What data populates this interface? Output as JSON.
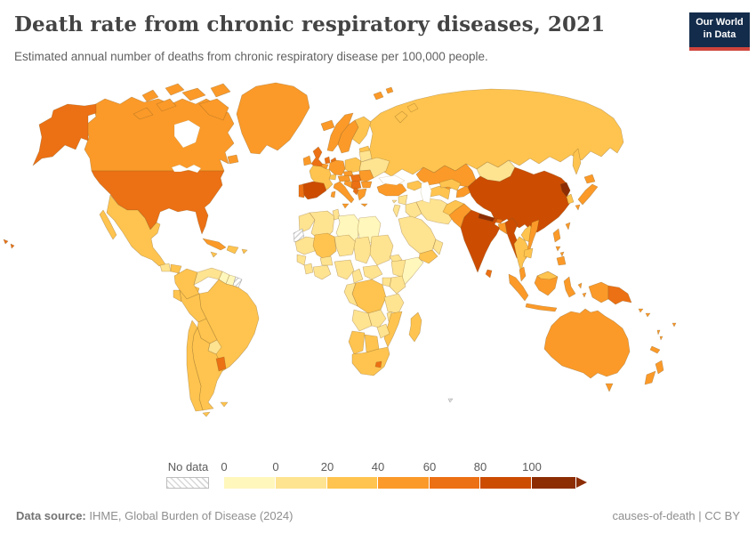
{
  "header": {
    "title": "Death rate from chronic respiratory diseases, 2021",
    "subtitle": "Estimated annual number of deaths from chronic respiratory disease per 100,000 people.",
    "logo": {
      "line1": "Our World",
      "line2": "in Data",
      "bg_color": "#132c4b",
      "accent_color": "#d0453c"
    }
  },
  "legend": {
    "no_data_label": "No data",
    "ticks": [
      "0",
      "0",
      "20",
      "40",
      "60",
      "80",
      "100"
    ],
    "bin_colors": [
      "#fff7bc",
      "#fee391",
      "#fec44f",
      "#fb9a29",
      "#ec7014",
      "#cc4c02",
      "#8c2d04"
    ]
  },
  "footer": {
    "source_label": "Data source:",
    "source_text": " IHME, Global Burden of Disease (2024)",
    "license_text": "causes-of-death | CC BY"
  },
  "chart_data": {
    "type": "choropleth",
    "title": "Death rate from chronic respiratory diseases, 2021",
    "unit": "deaths per 100,000 people",
    "year": "2021",
    "legend_title": "Deaths per 100,000 people",
    "bin_ranges": [
      "0",
      "0–20",
      "20–40",
      "40–60",
      "60–80",
      "80–100",
      ">100"
    ],
    "no_data_style": "hatched",
    "regions": [
      {
        "id": "russia",
        "name": "Russia",
        "bin": 2
      },
      {
        "id": "novaya",
        "name": "Novaya Zemlya (Russia)",
        "bin": 2
      },
      {
        "id": "svalbard",
        "name": "Svalbard",
        "bin": 3
      },
      {
        "id": "canada",
        "name": "Canada",
        "bin": 3
      },
      {
        "id": "nfld",
        "name": "Newfoundland (Canada)",
        "bin": 3
      },
      {
        "id": "arctic1",
        "name": "Arctic islands",
        "bin": 3
      },
      {
        "id": "arctic2",
        "name": "Arctic islands",
        "bin": 3
      },
      {
        "id": "arctic3",
        "name": "Arctic islands",
        "bin": 3
      },
      {
        "id": "arctic4",
        "name": "Arctic islands",
        "bin": 3
      },
      {
        "id": "arctic5",
        "name": "Arctic islands",
        "bin": 3
      },
      {
        "id": "arctic6",
        "name": "Arctic islands",
        "bin": 3
      },
      {
        "id": "baffin",
        "name": "Baffin Island (Canada)",
        "bin": 3
      },
      {
        "id": "greenland",
        "name": "Greenland",
        "bin": 3
      },
      {
        "id": "iceland",
        "name": "Iceland",
        "bin": 3
      },
      {
        "id": "alaska",
        "name": "Alaska (United States)",
        "bin": 4
      },
      {
        "id": "usa",
        "name": "United States",
        "bin": 4
      },
      {
        "id": "hawaii",
        "name": "Hawaii (United States)",
        "bin": 4
      },
      {
        "id": "mexico",
        "name": "Mexico",
        "bin": 2
      },
      {
        "id": "baja",
        "name": "Baja California (Mexico)",
        "bin": 2
      },
      {
        "id": "guatemala",
        "name": "Guatemala",
        "bin": 1
      },
      {
        "id": "honduras",
        "name": "Honduras",
        "bin": 2
      },
      {
        "id": "nicaragua",
        "name": "Nicaragua",
        "bin": 1
      },
      {
        "id": "costa_panama",
        "name": "Costa Rica / Panama",
        "bin": 2
      },
      {
        "id": "cuba",
        "name": "Cuba",
        "bin": 3
      },
      {
        "id": "jamaica",
        "name": "Jamaica",
        "bin": 2
      },
      {
        "id": "hispaniola",
        "name": "Hispaniola",
        "bin": 2
      },
      {
        "id": "pr",
        "name": "Puerto Rico",
        "bin": 2
      },
      {
        "id": "colombia",
        "name": "Colombia",
        "bin": 2
      },
      {
        "id": "venezuela",
        "name": "Venezuela",
        "bin": 1
      },
      {
        "id": "guyana",
        "name": "Guyana",
        "bin": 0
      },
      {
        "id": "suriname",
        "name": "Suriname",
        "bin": 0
      },
      {
        "id": "fr_guiana",
        "name": "French Guiana",
        "bin": "no_data"
      },
      {
        "id": "brazil",
        "name": "Brazil",
        "bin": 2
      },
      {
        "id": "ecuador",
        "name": "Ecuador",
        "bin": 2
      },
      {
        "id": "peru",
        "name": "Peru",
        "bin": 2
      },
      {
        "id": "bolivia",
        "name": "Bolivia",
        "bin": 2
      },
      {
        "id": "paraguay",
        "name": "Paraguay",
        "bin": 1
      },
      {
        "id": "argentina",
        "name": "Argentina",
        "bin": 2
      },
      {
        "id": "chile",
        "name": "Chile",
        "bin": 2
      },
      {
        "id": "uruguay",
        "name": "Uruguay",
        "bin": 4
      },
      {
        "id": "tdf",
        "name": "Tierra del Fuego",
        "bin": 2
      },
      {
        "id": "falkland",
        "name": "Falkland Islands",
        "bin": 2
      },
      {
        "id": "norway",
        "name": "Norway",
        "bin": 3
      },
      {
        "id": "sweden",
        "name": "Sweden",
        "bin": 3
      },
      {
        "id": "finland",
        "name": "Finland",
        "bin": 2
      },
      {
        "id": "ireland",
        "name": "Ireland",
        "bin": 3
      },
      {
        "id": "uk",
        "name": "United Kingdom",
        "bin": 4
      },
      {
        "id": "denmark",
        "name": "Denmark",
        "bin": 4
      },
      {
        "id": "netherlands",
        "name": "Netherlands",
        "bin": 4
      },
      {
        "id": "belgium",
        "name": "Belgium",
        "bin": 3
      },
      {
        "id": "germany",
        "name": "Germany",
        "bin": 3
      },
      {
        "id": "poland",
        "name": "Poland",
        "bin": 2
      },
      {
        "id": "baltics",
        "name": "Baltic states",
        "bin": 2
      },
      {
        "id": "belarus",
        "name": "Belarus",
        "bin": 1
      },
      {
        "id": "ukraine",
        "name": "Ukraine",
        "bin": 1
      },
      {
        "id": "czech",
        "name": "Czechia / Slovakia",
        "bin": 3
      },
      {
        "id": "austria",
        "name": "Austria",
        "bin": 3
      },
      {
        "id": "switzerland",
        "name": "Switzerland",
        "bin": 2
      },
      {
        "id": "france",
        "name": "France",
        "bin": 2
      },
      {
        "id": "spain",
        "name": "Spain",
        "bin": 5
      },
      {
        "id": "portugal",
        "name": "Portugal",
        "bin": 4
      },
      {
        "id": "italy",
        "name": "Italy",
        "bin": 3
      },
      {
        "id": "slovenia_croatia",
        "name": "Slovenia / Croatia",
        "bin": 3
      },
      {
        "id": "serbia",
        "name": "Serbia / Bosnia",
        "bin": 4
      },
      {
        "id": "hungary",
        "name": "Hungary",
        "bin": 4
      },
      {
        "id": "romania",
        "name": "Romania",
        "bin": 3
      },
      {
        "id": "bulgaria",
        "name": "Bulgaria",
        "bin": 3
      },
      {
        "id": "albania",
        "name": "Albania",
        "bin": 4
      },
      {
        "id": "greece",
        "name": "Greece",
        "bin": 3
      },
      {
        "id": "kazakhstan",
        "name": "Kazakhstan",
        "bin": 3
      },
      {
        "id": "mongolia",
        "name": "Mongolia",
        "bin": 1
      },
      {
        "id": "georgia_az",
        "name": "Georgia / Azerbaijan",
        "bin": 2
      },
      {
        "id": "turkey",
        "name": "Turkey",
        "bin": 3
      },
      {
        "id": "cyprus",
        "name": "Cyprus",
        "bin": 1
      },
      {
        "id": "syria",
        "name": "Syria",
        "bin": 1
      },
      {
        "id": "israel_jordan",
        "name": "Israel / Jordan",
        "bin": 1
      },
      {
        "id": "iraq",
        "name": "Iraq",
        "bin": 1
      },
      {
        "id": "saudi",
        "name": "Saudi Arabia",
        "bin": 1
      },
      {
        "id": "yemen",
        "name": "Yemen",
        "bin": 2
      },
      {
        "id": "oman",
        "name": "Oman",
        "bin": 1
      },
      {
        "id": "iran",
        "name": "Iran",
        "bin": 1
      },
      {
        "id": "turkmen",
        "name": "Turkmenistan",
        "bin": 2
      },
      {
        "id": "uzbek",
        "name": "Uzbekistan",
        "bin": 2
      },
      {
        "id": "kyrgyz_tajik",
        "name": "Kyrgyzstan / Tajikistan",
        "bin": 3
      },
      {
        "id": "afghanistan",
        "name": "Afghanistan",
        "bin": 2
      },
      {
        "id": "pakistan",
        "name": "Pakistan",
        "bin": 3
      },
      {
        "id": "china",
        "name": "China",
        "bin": 5
      },
      {
        "id": "nkorea",
        "name": "North Korea",
        "bin": 6
      },
      {
        "id": "skorea",
        "name": "South Korea",
        "bin": 2
      },
      {
        "id": "sakhalin",
        "name": "Sakhalin (Russia)",
        "bin": 2
      },
      {
        "id": "japan_hokkaido",
        "name": "Japan (Hokkaido)",
        "bin": 3
      },
      {
        "id": "japan_honshu",
        "name": "Japan (Honshu)",
        "bin": 3
      },
      {
        "id": "japan_kyushu",
        "name": "Japan (Kyushu)",
        "bin": 3
      },
      {
        "id": "taiwan",
        "name": "Taiwan",
        "bin": 3
      },
      {
        "id": "india",
        "name": "India",
        "bin": 5
      },
      {
        "id": "nepal",
        "name": "Nepal",
        "bin": 6
      },
      {
        "id": "bhutan",
        "name": "Bhutan",
        "bin": 4
      },
      {
        "id": "bangladesh",
        "name": "Bangladesh",
        "bin": 3
      },
      {
        "id": "srilanka",
        "name": "Sri Lanka",
        "bin": 4
      },
      {
        "id": "myanmar",
        "name": "Myanmar",
        "bin": 5
      },
      {
        "id": "thailand",
        "name": "Thailand",
        "bin": 2
      },
      {
        "id": "laos",
        "name": "Laos",
        "bin": 2
      },
      {
        "id": "vietnam",
        "name": "Vietnam",
        "bin": 3
      },
      {
        "id": "cambodia",
        "name": "Cambodia",
        "bin": 2
      },
      {
        "id": "malaysia_pen",
        "name": "Malaysia (peninsular)",
        "bin": 3
      },
      {
        "id": "sumatra",
        "name": "Indonesia (Sumatra)",
        "bin": 3
      },
      {
        "id": "borneo_id",
        "name": "Indonesia (Kalimantan)",
        "bin": 3
      },
      {
        "id": "borneo_my",
        "name": "Malaysia (Borneo)",
        "bin": 2
      },
      {
        "id": "java",
        "name": "Indonesia (Java)",
        "bin": 3
      },
      {
        "id": "sulawesi",
        "name": "Indonesia (Sulawesi)",
        "bin": 3
      },
      {
        "id": "moluccas",
        "name": "Indonesia (Moluccas)",
        "bin": 3
      },
      {
        "id": "luzon",
        "name": "Philippines (Luzon)",
        "bin": 3
      },
      {
        "id": "visayas",
        "name": "Philippines (Visayas)",
        "bin": 3
      },
      {
        "id": "mindanao",
        "name": "Philippines (Mindanao)",
        "bin": 3
      },
      {
        "id": "wpapua",
        "name": "Indonesia (Papua)",
        "bin": 3
      },
      {
        "id": "png",
        "name": "Papua New Guinea",
        "bin": 4
      },
      {
        "id": "solomon",
        "name": "Solomon Islands",
        "bin": 3
      },
      {
        "id": "vanuatu",
        "name": "Vanuatu",
        "bin": 3
      },
      {
        "id": "fiji",
        "name": "Fiji",
        "bin": 3
      },
      {
        "id": "ncal",
        "name": "New Caledonia",
        "bin": 3
      },
      {
        "id": "australia",
        "name": "Australia",
        "bin": 3
      },
      {
        "id": "tasmania",
        "name": "Tasmania (Australia)",
        "bin": 3
      },
      {
        "id": "nz_north",
        "name": "New Zealand (North Island)",
        "bin": 3
      },
      {
        "id": "nz_south",
        "name": "New Zealand (South Island)",
        "bin": 3
      },
      {
        "id": "kerguelen",
        "name": "French Southern Territories",
        "bin": "no_data"
      },
      {
        "id": "morocco",
        "name": "Morocco",
        "bin": 1
      },
      {
        "id": "wsahara",
        "name": "Western Sahara",
        "bin": "no_data"
      },
      {
        "id": "algeria",
        "name": "Algeria",
        "bin": 1
      },
      {
        "id": "tunisia",
        "name": "Tunisia",
        "bin": 1
      },
      {
        "id": "libya",
        "name": "Libya",
        "bin": 0
      },
      {
        "id": "egypt",
        "name": "Egypt",
        "bin": 0
      },
      {
        "id": "mauritania",
        "name": "Mauritania",
        "bin": 1
      },
      {
        "id": "mali",
        "name": "Mali",
        "bin": 2
      },
      {
        "id": "niger",
        "name": "Niger",
        "bin": 1
      },
      {
        "id": "chad",
        "name": "Chad",
        "bin": 1
      },
      {
        "id": "sudan",
        "name": "Sudan",
        "bin": 1
      },
      {
        "id": "eritrea",
        "name": "Eritrea",
        "bin": 1
      },
      {
        "id": "senegal",
        "name": "Senegal",
        "bin": 1
      },
      {
        "id": "guinea",
        "name": "Guinea",
        "bin": 1
      },
      {
        "id": "ivory_ghana",
        "name": "Côte d'Ivoire / Ghana",
        "bin": 1
      },
      {
        "id": "burkina",
        "name": "Burkina Faso",
        "bin": 1
      },
      {
        "id": "nigeria",
        "name": "Nigeria",
        "bin": 1
      },
      {
        "id": "cameroon",
        "name": "Cameroon",
        "bin": 1
      },
      {
        "id": "car",
        "name": "Central African Republic",
        "bin": 1
      },
      {
        "id": "ethiopia",
        "name": "Ethiopia",
        "bin": 1
      },
      {
        "id": "somalia",
        "name": "Somalia",
        "bin": 0
      },
      {
        "id": "kenya",
        "name": "Kenya",
        "bin": 1
      },
      {
        "id": "uganda",
        "name": "Uganda",
        "bin": 1
      },
      {
        "id": "drc",
        "name": "Democratic Republic of Congo",
        "bin": 2
      },
      {
        "id": "congo_gabon",
        "name": "Congo / Gabon",
        "bin": 1
      },
      {
        "id": "tanzania",
        "name": "Tanzania",
        "bin": 1
      },
      {
        "id": "angola",
        "name": "Angola",
        "bin": 1
      },
      {
        "id": "zambia",
        "name": "Zambia",
        "bin": 1
      },
      {
        "id": "malawi",
        "name": "Malawi",
        "bin": 1
      },
      {
        "id": "mozambique",
        "name": "Mozambique",
        "bin": 2
      },
      {
        "id": "zimbabwe",
        "name": "Zimbabwe",
        "bin": 1
      },
      {
        "id": "namibia",
        "name": "Namibia",
        "bin": 2
      },
      {
        "id": "botswana",
        "name": "Botswana",
        "bin": 2
      },
      {
        "id": "south_africa",
        "name": "South Africa",
        "bin": 2
      },
      {
        "id": "lesotho",
        "name": "Lesotho",
        "bin": 4
      },
      {
        "id": "madagascar",
        "name": "Madagascar",
        "bin": 2
      },
      {
        "id": "hudson",
        "name": "Hudson Bay",
        "bin": "water"
      },
      {
        "id": "glakes",
        "name": "Great Lakes",
        "bin": "water"
      },
      {
        "id": "caspian",
        "name": "Caspian Sea",
        "bin": "water"
      },
      {
        "id": "black_sea",
        "name": "Black Sea",
        "bin": "water"
      }
    ]
  }
}
